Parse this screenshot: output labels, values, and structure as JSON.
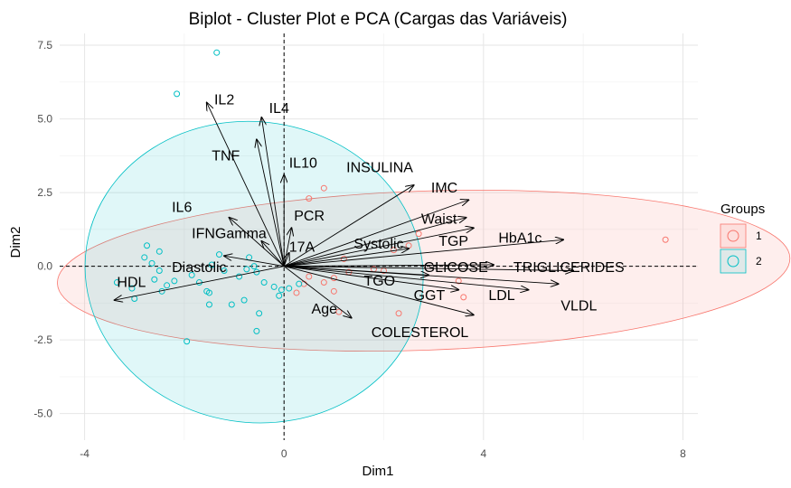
{
  "chart_data": {
    "type": "scatter",
    "title": "Biplot - Cluster Plot e PCA (Cargas das Variáveis)",
    "xlabel": "Dim1",
    "ylabel": "Dim2",
    "xlim": [
      -4.5,
      8.3
    ],
    "ylim": [
      -5.9,
      7.9
    ],
    "x_ticks": [
      -4,
      0,
      4,
      8
    ],
    "y_ticks": [
      -5.0,
      -2.5,
      0.0,
      2.5,
      5.0,
      7.5
    ],
    "x_tick_labels": [
      "-4",
      "0",
      "4",
      "8"
    ],
    "y_tick_labels": [
      "-5.0",
      "-2.5",
      "0.0",
      "2.5",
      "5.0",
      "7.5"
    ],
    "grid": true,
    "legend": {
      "title": "Groups",
      "position": "right",
      "entries": [
        {
          "label": "1",
          "color": "#F8766D"
        },
        {
          "label": "2",
          "color": "#00BFC4"
        }
      ]
    },
    "reference_lines": {
      "x": 0,
      "y": 0,
      "style": "dashed"
    },
    "series": [
      {
        "name": "1",
        "color": "#F8766D",
        "points": [
          [
            0.8,
            2.65
          ],
          [
            0.5,
            2.3
          ],
          [
            2.7,
            1.1
          ],
          [
            2.5,
            0.7
          ],
          [
            2.2,
            0.55
          ],
          [
            1.2,
            0.25
          ],
          [
            1.8,
            -0.1
          ],
          [
            1.3,
            -0.2
          ],
          [
            2.0,
            -0.15
          ],
          [
            0.5,
            -0.35
          ],
          [
            0.8,
            -0.55
          ],
          [
            1.0,
            -0.4
          ],
          [
            1.0,
            -0.85
          ],
          [
            0.4,
            -0.6
          ],
          [
            0.25,
            -0.9
          ],
          [
            3.5,
            -0.5
          ],
          [
            3.6,
            -1.05
          ],
          [
            2.3,
            -1.6
          ],
          [
            1.1,
            -1.55
          ],
          [
            7.65,
            0.9
          ]
        ],
        "ellipse": {
          "cx": 2.8,
          "cy": -0.15,
          "rx": 7.35,
          "ry": 2.7,
          "angle_deg": 2
        }
      },
      {
        "name": "2",
        "color": "#00BFC4",
        "points": [
          [
            -1.35,
            7.25
          ],
          [
            -2.15,
            5.85
          ],
          [
            -2.75,
            0.7
          ],
          [
            -2.5,
            0.5
          ],
          [
            -2.8,
            0.3
          ],
          [
            -2.65,
            0.1
          ],
          [
            -2.5,
            -0.15
          ],
          [
            -2.6,
            -0.45
          ],
          [
            -2.35,
            -0.65
          ],
          [
            -3.35,
            -0.55
          ],
          [
            -3.05,
            -0.75
          ],
          [
            -3.0,
            -1.1
          ],
          [
            -2.45,
            -0.85
          ],
          [
            -2.2,
            -0.5
          ],
          [
            -1.85,
            -0.3
          ],
          [
            -1.7,
            -0.55
          ],
          [
            -1.55,
            -0.85
          ],
          [
            -1.2,
            -0.15
          ],
          [
            -0.9,
            -0.35
          ],
          [
            -0.75,
            -0.1
          ],
          [
            -0.6,
            0.0
          ],
          [
            -0.55,
            -0.2
          ],
          [
            -0.4,
            -0.55
          ],
          [
            -0.2,
            -0.7
          ],
          [
            -0.05,
            -0.8
          ],
          [
            -0.1,
            -1.0
          ],
          [
            -0.8,
            -1.15
          ],
          [
            -1.05,
            -1.3
          ],
          [
            -1.5,
            -1.3
          ],
          [
            -1.5,
            -0.9
          ],
          [
            -1.3,
            0.4
          ],
          [
            -0.7,
            0.3
          ],
          [
            -0.5,
            -1.6
          ],
          [
            -0.55,
            -2.2
          ],
          [
            -1.95,
            -2.55
          ],
          [
            -1.45,
            0.05
          ],
          [
            0.1,
            -0.75
          ],
          [
            0.3,
            -0.6
          ]
        ],
        "ellipse": {
          "cx": -0.6,
          "cy": -0.2,
          "rx": 3.4,
          "ry": 5.1,
          "angle_deg": -9
        }
      }
    ],
    "loadings": [
      {
        "name": "IL2",
        "x": -1.55,
        "y": 5.55,
        "lx": -1.4,
        "ly": 5.65
      },
      {
        "name": "IL4",
        "x": -0.45,
        "y": 5.05,
        "lx": -0.3,
        "ly": 5.35
      },
      {
        "name": "TNF",
        "x": -0.55,
        "y": 4.3,
        "lx": -1.45,
        "ly": 3.75
      },
      {
        "name": "IL10",
        "x": 0.0,
        "y": 3.1,
        "lx": 0.1,
        "ly": 3.5
      },
      {
        "name": "INSULINA",
        "x": 2.6,
        "y": 2.75,
        "lx": 1.25,
        "ly": 3.35
      },
      {
        "name": "IMC",
        "x": 3.7,
        "y": 2.25,
        "lx": 2.95,
        "ly": 2.65
      },
      {
        "name": "IL6",
        "x": -1.1,
        "y": 1.65,
        "lx": -2.25,
        "ly": 2.0
      },
      {
        "name": "PCR",
        "x": 0.15,
        "y": 1.3,
        "lx": 0.2,
        "ly": 1.7
      },
      {
        "name": "Waist",
        "x": 3.65,
        "y": 1.65,
        "lx": 2.75,
        "ly": 1.6
      },
      {
        "name": "IFNGamma",
        "x": -0.45,
        "y": 0.85,
        "lx": -1.85,
        "ly": 1.1
      },
      {
        "name": "Systolic",
        "x": 2.5,
        "y": 0.6,
        "lx": 1.4,
        "ly": 0.75
      },
      {
        "name": "TGP",
        "x": 3.8,
        "y": 1.3,
        "lx": 3.1,
        "ly": 0.85
      },
      {
        "name": "HbA1c",
        "x": 5.6,
        "y": 0.9,
        "lx": 4.3,
        "ly": 0.95
      },
      {
        "name": "17A",
        "x": 0.1,
        "y": 0.45,
        "lx": 0.1,
        "ly": 0.65
      },
      {
        "name": "Diastolic",
        "x": -1.2,
        "y": 0.35,
        "lx": -2.25,
        "ly": -0.05
      },
      {
        "name": "GLICOSE",
        "x": 4.2,
        "y": 0.05,
        "lx": 2.8,
        "ly": -0.05
      },
      {
        "name": "TRIGLICERIDES",
        "x": 5.8,
        "y": -0.15,
        "lx": 4.6,
        "ly": -0.05
      },
      {
        "name": "TGO",
        "x": 2.9,
        "y": -0.3,
        "lx": 1.6,
        "ly": -0.5
      },
      {
        "name": "GGT",
        "x": 3.5,
        "y": -0.8,
        "lx": 2.6,
        "ly": -1.0
      },
      {
        "name": "LDL",
        "x": 4.9,
        "y": -0.8,
        "lx": 4.1,
        "ly": -1.0
      },
      {
        "name": "VLDL",
        "x": 5.5,
        "y": -0.6,
        "lx": 5.55,
        "ly": -1.35
      },
      {
        "name": "HDL",
        "x": -3.4,
        "y": -1.15,
        "lx": -3.35,
        "ly": -0.55
      },
      {
        "name": "Age",
        "x": 1.35,
        "y": -1.75,
        "lx": 0.55,
        "ly": -1.45
      },
      {
        "name": "COLESTEROL",
        "x": 3.8,
        "y": -1.65,
        "lx": 1.75,
        "ly": -2.25
      }
    ]
  }
}
